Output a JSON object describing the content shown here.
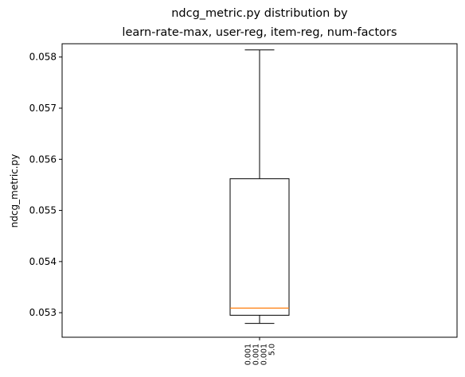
{
  "chart_data": {
    "type": "box",
    "title": [
      "ndcg_metric.py distribution by",
      "learn-rate-max, user-reg, item-reg, num-factors"
    ],
    "ylabel": "ndcg_metric.py",
    "xlabel": "",
    "ylim": [
      0.05252,
      0.05826
    ],
    "yticks": [
      0.053,
      0.054,
      0.055,
      0.056,
      0.057,
      0.058
    ],
    "ytick_labels": [
      "0.053",
      "0.054",
      "0.055",
      "0.056",
      "0.057",
      "0.058"
    ],
    "categories": [
      {
        "label_lines": [
          "0.001",
          "0.001",
          "0.001",
          "5.0"
        ]
      }
    ],
    "boxes": [
      {
        "whisker_low": 0.05279,
        "q1": 0.05295,
        "median": 0.05309,
        "q3": 0.05562,
        "whisker_high": 0.05814
      }
    ],
    "colors": {
      "box": "#000000",
      "median": "#ff7f0e"
    },
    "grid": false
  }
}
